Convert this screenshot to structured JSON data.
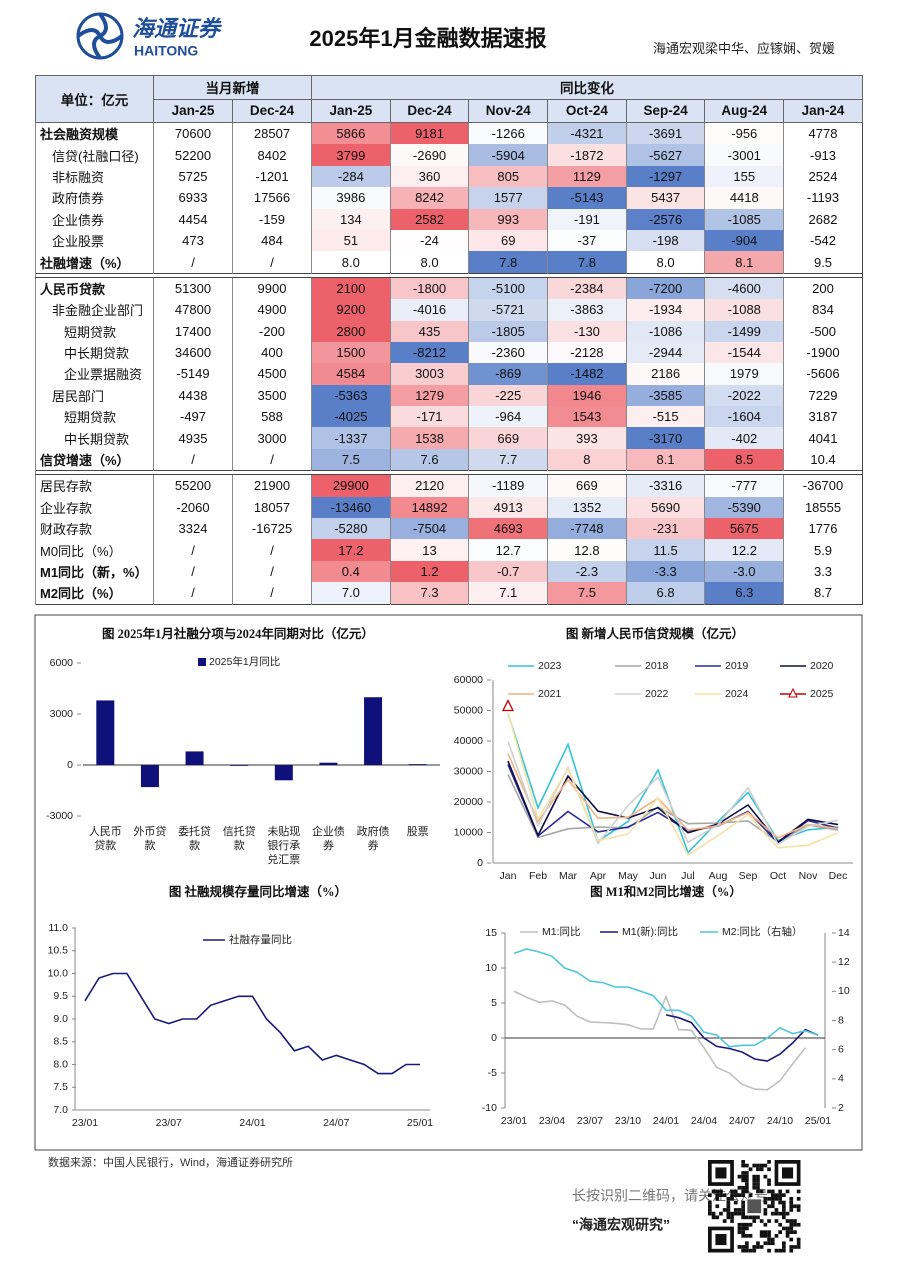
{
  "header": {
    "logo_cn": "海通证券",
    "logo_en": "HAITONG",
    "title": "2025年1月金融数据速报",
    "authors": "海通宏观梁中华、应镓娴、贺媛"
  },
  "table": {
    "unit_label": "单位：亿元",
    "group1": "当月新增",
    "group2": "同比变化",
    "columns": [
      "Jan-25",
      "Dec-24",
      "Jan-25",
      "Dec-24",
      "Nov-24",
      "Oct-24",
      "Sep-24",
      "Aug-24",
      "Jan-24"
    ],
    "sections": [
      {
        "rows": [
          {
            "label": "社会融资规模",
            "bold": true,
            "indent": 0,
            "cells": [
              "70600",
              "28507",
              "5866",
              "9181",
              "-1266",
              "-4321",
              "-3691",
              "-956",
              "4778"
            ]
          },
          {
            "label": "信贷(社融口径)",
            "bold": false,
            "indent": 1,
            "cells": [
              "52200",
              "8402",
              "3799",
              "-2690",
              "-5904",
              "-1872",
              "-5627",
              "-3001",
              "-913"
            ]
          },
          {
            "label": "非标融资",
            "bold": false,
            "indent": 1,
            "cells": [
              "5725",
              "-1201",
              "-284",
              "360",
              "805",
              "1129",
              "-1297",
              "155",
              "2524"
            ]
          },
          {
            "label": "政府债券",
            "bold": false,
            "indent": 1,
            "cells": [
              "6933",
              "17566",
              "3986",
              "8242",
              "1577",
              "-5143",
              "5437",
              "4418",
              "-1193"
            ]
          },
          {
            "label": "企业债券",
            "bold": false,
            "indent": 1,
            "cells": [
              "4454",
              "-159",
              "134",
              "2582",
              "993",
              "-191",
              "-2576",
              "-1085",
              "2682"
            ]
          },
          {
            "label": "企业股票",
            "bold": false,
            "indent": 1,
            "cells": [
              "473",
              "484",
              "51",
              "-24",
              "69",
              "-37",
              "-198",
              "-904",
              "-542"
            ]
          },
          {
            "label": "社融增速（%）",
            "bold": true,
            "indent": 0,
            "cells": [
              "/",
              "/",
              "8.0",
              "8.0",
              "7.8",
              "7.8",
              "8.0",
              "8.1",
              "9.5"
            ]
          }
        ]
      },
      {
        "rows": [
          {
            "label": "人民币贷款",
            "bold": true,
            "indent": 0,
            "cells": [
              "51300",
              "9900",
              "2100",
              "-1800",
              "-5100",
              "-2384",
              "-7200",
              "-4600",
              "200"
            ]
          },
          {
            "label": "非金融企业部门",
            "bold": false,
            "indent": 1,
            "cells": [
              "47800",
              "4900",
              "9200",
              "-4016",
              "-5721",
              "-3863",
              "-1934",
              "-1088",
              "834"
            ]
          },
          {
            "label": "短期贷款",
            "bold": false,
            "indent": 2,
            "cells": [
              "17400",
              "-200",
              "2800",
              "435",
              "-1805",
              "-130",
              "-1086",
              "-1499",
              "-500"
            ]
          },
          {
            "label": "中长期贷款",
            "bold": false,
            "indent": 2,
            "cells": [
              "34600",
              "400",
              "1500",
              "-8212",
              "-2360",
              "-2128",
              "-2944",
              "-1544",
              "-1900"
            ]
          },
          {
            "label": "企业票据融资",
            "bold": false,
            "indent": 2,
            "cells": [
              "-5149",
              "4500",
              "4584",
              "3003",
              "-869",
              "-1482",
              "2186",
              "1979",
              "-5606"
            ]
          },
          {
            "label": "居民部门",
            "bold": false,
            "indent": 1,
            "cells": [
              "4438",
              "3500",
              "-5363",
              "1279",
              "-225",
              "1946",
              "-3585",
              "-2022",
              "7229"
            ]
          },
          {
            "label": "短期贷款",
            "bold": false,
            "indent": 2,
            "cells": [
              "-497",
              "588",
              "-4025",
              "-171",
              "-964",
              "1543",
              "-515",
              "-1604",
              "3187"
            ]
          },
          {
            "label": "中长期贷款",
            "bold": false,
            "indent": 2,
            "cells": [
              "4935",
              "3000",
              "-1337",
              "1538",
              "669",
              "393",
              "-3170",
              "-402",
              "4041"
            ]
          },
          {
            "label": "信贷增速（%）",
            "bold": true,
            "indent": 0,
            "cells": [
              "/",
              "/",
              "7.5",
              "7.6",
              "7.7",
              "8",
              "8.1",
              "8.5",
              "10.4"
            ]
          }
        ]
      },
      {
        "rows": [
          {
            "label": "居民存款",
            "bold": false,
            "indent": 0,
            "cells": [
              "55200",
              "21900",
              "29900",
              "2120",
              "-1189",
              "669",
              "-3316",
              "-777",
              "-36700"
            ]
          },
          {
            "label": "企业存款",
            "bold": false,
            "indent": 0,
            "cells": [
              "-2060",
              "18057",
              "-13460",
              "14892",
              "4913",
              "1352",
              "5690",
              "-5390",
              "18555"
            ]
          },
          {
            "label": "财政存款",
            "bold": false,
            "indent": 0,
            "cells": [
              "3324",
              "-16725",
              "-5280",
              "-7504",
              "4693",
              "-7748",
              "-231",
              "5675",
              "1776"
            ]
          },
          {
            "label": "M0同比（%）",
            "bold": false,
            "indent": 0,
            "cells": [
              "/",
              "/",
              "17.2",
              "13",
              "12.7",
              "12.8",
              "11.5",
              "12.2",
              "5.9"
            ]
          },
          {
            "label": "M1同比（新，%）",
            "bold": true,
            "indent": 0,
            "cells": [
              "/",
              "/",
              "0.4",
              "1.2",
              "-0.7",
              "-2.3",
              "-3.3",
              "-3.0",
              "3.3"
            ]
          },
          {
            "label": "M2同比（%）",
            "bold": true,
            "indent": 0,
            "cells": [
              "/",
              "/",
              "7.0",
              "7.3",
              "7.1",
              "7.5",
              "6.8",
              "6.3",
              "8.7"
            ]
          }
        ]
      }
    ]
  },
  "charts": [
    {
      "type": "bar",
      "title": "图 2025年1月社融分项与2024年同期对比（亿元）",
      "categories": [
        "人民币贷款",
        "外币贷款",
        "委托贷款",
        "信托贷款",
        "未贴现银行承兑汇票",
        "企业债券",
        "政府债券",
        "股票"
      ],
      "series": [
        {
          "name": "2025年1月同比",
          "color": "#10107a",
          "values": [
            3799,
            -1300,
            800,
            -50,
            -900,
            134,
            3986,
            51
          ]
        }
      ],
      "ylim": [
        -3000,
        6000
      ],
      "yticks": [
        -3000,
        0,
        3000,
        6000
      ]
    },
    {
      "type": "line",
      "title": "图 新增人民币信贷规模（亿元）",
      "categories": [
        "Jan",
        "Feb",
        "Mar",
        "Apr",
        "May",
        "Jun",
        "Jul",
        "Aug",
        "Sep",
        "Oct",
        "Nov",
        "Dec"
      ],
      "ylim": [
        0,
        60000
      ],
      "yticks": [
        0,
        10000,
        20000,
        30000,
        40000,
        50000,
        60000
      ],
      "series": [
        {
          "name": "2023",
          "color": "#35c3d8",
          "values": [
            49000,
            18100,
            38900,
            7188,
            13600,
            30500,
            3459,
            13600,
            23100,
            7384,
            10900,
            11700
          ]
        },
        {
          "name": "2018",
          "color": "#a6a6a6",
          "values": [
            29000,
            8393,
            11200,
            11800,
            11500,
            18400,
            12900,
            13100,
            13800,
            6970,
            12500,
            10800
          ]
        },
        {
          "name": "2019",
          "color": "#2a2a9a",
          "values": [
            32300,
            8858,
            16900,
            10200,
            11800,
            16600,
            10600,
            12100,
            16900,
            6613,
            13900,
            11400
          ]
        },
        {
          "name": "2020",
          "color": "#0f0f45",
          "values": [
            33400,
            9057,
            28500,
            17000,
            14800,
            18100,
            9927,
            12800,
            19000,
            6898,
            14300,
            12600
          ]
        },
        {
          "name": "2021",
          "color": "#f4b183",
          "values": [
            35800,
            13600,
            27300,
            14700,
            15000,
            21200,
            10800,
            12200,
            16600,
            8262,
            12700,
            11300
          ]
        },
        {
          "name": "2022",
          "color": "#cfcfcf",
          "values": [
            39800,
            12300,
            31300,
            6454,
            18900,
            28100,
            6790,
            12500,
            24700,
            6152,
            12100,
            14000
          ]
        },
        {
          "name": "2024",
          "color": "#f3e3a6",
          "values": [
            49200,
            14500,
            30900,
            7300,
            9500,
            21300,
            2600,
            9000,
            15900,
            5000,
            5800,
            9900
          ]
        },
        {
          "name": "2025",
          "color": "#c00000",
          "marker": "triangle",
          "values": [
            51300,
            null,
            null,
            null,
            null,
            null,
            null,
            null,
            null,
            null,
            null,
            null
          ]
        }
      ]
    },
    {
      "type": "line",
      "title": "图 社融规模存量同比增速（%）",
      "categories": [
        "23/01",
        null,
        null,
        null,
        null,
        null,
        "23/07",
        null,
        null,
        null,
        null,
        null,
        "24/01",
        null,
        null,
        null,
        null,
        null,
        "24/07",
        null,
        null,
        null,
        null,
        null,
        "25/01"
      ],
      "ylim": [
        7,
        11
      ],
      "yticks": [
        {
          "value": 7,
          "label": "7.0"
        },
        7.5,
        {
          "value": 8,
          "label": "8.0"
        },
        8.5,
        {
          "value": 9,
          "label": "9.0"
        },
        9.5,
        {
          "value": 10,
          "label": "10.0"
        },
        10.5,
        {
          "value": 11,
          "label": "11.0"
        }
      ],
      "series": [
        {
          "name": "社融存量同比",
          "color": "#1a1a7a",
          "values": [
            9.4,
            9.9,
            10.0,
            10.0,
            9.5,
            9.0,
            8.9,
            9.0,
            9.0,
            9.3,
            9.4,
            9.5,
            9.5,
            9.0,
            8.7,
            8.3,
            8.4,
            8.1,
            8.2,
            8.1,
            8.0,
            7.8,
            7.8,
            8.0,
            8.0
          ]
        }
      ]
    },
    {
      "type": "line",
      "title": "图 M1和M2同比增速（%）",
      "categories": [
        "23/01",
        null,
        null,
        "23/04",
        null,
        null,
        "23/07",
        null,
        null,
        "23/10",
        null,
        null,
        "24/01",
        null,
        null,
        "24/04",
        null,
        null,
        "24/07",
        null,
        null,
        "24/10",
        null,
        null,
        "25/01"
      ],
      "ylim": [
        -10,
        15
      ],
      "yticks": [
        -10,
        -5,
        0,
        5,
        10,
        15
      ],
      "y2lim": [
        2,
        14
      ],
      "y2ticks": [
        2,
        4,
        6,
        8,
        10,
        12,
        14
      ],
      "series": [
        {
          "name": "M1:同比",
          "color": "#c0c0c0",
          "values": [
            6.7,
            5.8,
            5.1,
            5.3,
            4.7,
            3.1,
            2.3,
            2.2,
            2.1,
            1.9,
            1.3,
            1.3,
            5.9,
            1.2,
            1.1,
            -1.4,
            -4.2,
            -5.0,
            -6.6,
            -7.3,
            -7.4,
            -6.1,
            -3.7,
            -1.4,
            null
          ]
        },
        {
          "name": "M1(新):同比",
          "color": "#1a1a7a",
          "values": [
            null,
            null,
            null,
            null,
            null,
            null,
            null,
            null,
            null,
            null,
            null,
            null,
            3.3,
            2.9,
            2.2,
            0.0,
            -1.2,
            -1.5,
            -2.0,
            -3.0,
            -3.3,
            -2.3,
            -0.7,
            1.2,
            0.4
          ]
        },
        {
          "name": "M2:同比（右轴）",
          "color": "#4fc6dd",
          "axis": "y2",
          "values": [
            12.6,
            12.9,
            12.7,
            12.4,
            11.6,
            11.3,
            10.7,
            10.6,
            10.3,
            10.3,
            10.0,
            9.7,
            8.7,
            8.7,
            8.3,
            7.2,
            7.0,
            6.2,
            6.3,
            6.3,
            6.8,
            7.5,
            7.1,
            7.3,
            7.0
          ]
        }
      ]
    }
  ],
  "footer": {
    "source": "数据来源：中国人民银行，Wind，海通证券研究所",
    "qr_text": "长按识别二维码，请关注公众号",
    "account": "“海通宏观研究”"
  }
}
